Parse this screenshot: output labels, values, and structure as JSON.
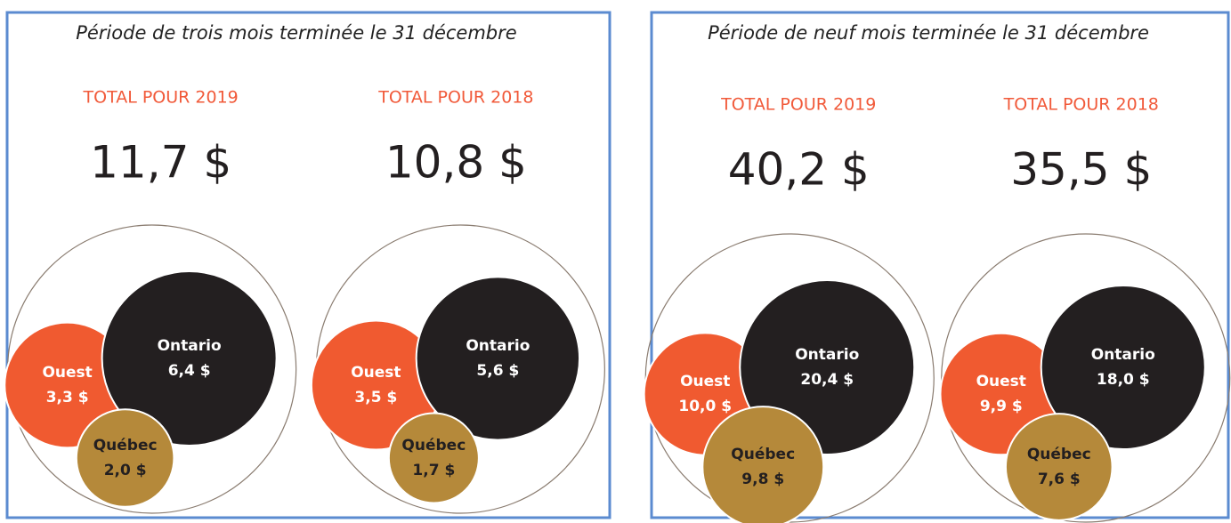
{
  "panels": [
    {
      "title": "Période de trois mois terminée le 31 décembre",
      "groups": [
        {
          "heading": "TOTAL POUR 2019",
          "total": 11.7,
          "total_label": "11,7 $",
          "regions": [
            {
              "name": "Ouest",
              "value": 3.3,
              "value_label": "3,3 $",
              "color": "#f05a30"
            },
            {
              "name": "Ontario",
              "value": 6.4,
              "value_label": "6,4 $",
              "color": "#231f20"
            },
            {
              "name": "Québec",
              "value": 2.0,
              "value_label": "2,0 $",
              "color": "#b5893a"
            }
          ]
        },
        {
          "heading": "TOTAL POUR 2018",
          "total": 10.8,
          "total_label": "10,8 $",
          "regions": [
            {
              "name": "Ouest",
              "value": 3.5,
              "value_label": "3,5 $",
              "color": "#f05a30"
            },
            {
              "name": "Ontario",
              "value": 5.6,
              "value_label": "5,6 $",
              "color": "#231f20"
            },
            {
              "name": "Québec",
              "value": 1.7,
              "value_label": "1,7 $",
              "color": "#b5893a"
            }
          ]
        }
      ]
    },
    {
      "title": "Période de neuf mois terminée le 31 décembre",
      "groups": [
        {
          "heading": "TOTAL POUR 2019",
          "total": 40.2,
          "total_label": "40,2 $",
          "regions": [
            {
              "name": "Ouest",
              "value": 10.0,
              "value_label": "10,0 $",
              "color": "#f05a30"
            },
            {
              "name": "Ontario",
              "value": 20.4,
              "value_label": "20,4 $",
              "color": "#231f20"
            },
            {
              "name": "Québec",
              "value": 9.8,
              "value_label": "9,8 $",
              "color": "#b5893a"
            }
          ]
        },
        {
          "heading": "TOTAL POUR 2018",
          "total": 35.5,
          "total_label": "35,5 $",
          "regions": [
            {
              "name": "Ouest",
              "value": 9.9,
              "value_label": "9,9 $",
              "color": "#f05a30"
            },
            {
              "name": "Ontario",
              "value": 18.0,
              "value_label": "18,0 $",
              "color": "#231f20"
            },
            {
              "name": "Québec",
              "value": 7.6,
              "value_label": "7,6 $",
              "color": "#b5893a"
            }
          ]
        }
      ]
    }
  ]
}
